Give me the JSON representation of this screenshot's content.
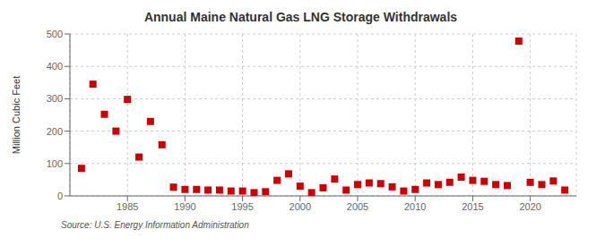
{
  "chart_data": {
    "type": "scatter",
    "title": "Annual Maine Natural Gas LNG Storage Withdrawals",
    "ylabel": "Million Cubic Feet",
    "annotation": "Source: U.S. Energy Information Administration",
    "x": [
      1981,
      1982,
      1983,
      1984,
      1985,
      1986,
      1987,
      1988,
      1989,
      1990,
      1991,
      1992,
      1993,
      1994,
      1995,
      1996,
      1997,
      1998,
      1999,
      2000,
      2001,
      2002,
      2003,
      2004,
      2005,
      2006,
      2007,
      2008,
      2009,
      2010,
      2011,
      2012,
      2013,
      2014,
      2015,
      2016,
      2017,
      2018,
      2019,
      2020,
      2021,
      2022,
      2023
    ],
    "values": [
      85,
      345,
      252,
      200,
      298,
      120,
      230,
      158,
      27,
      20,
      20,
      18,
      18,
      15,
      15,
      10,
      13,
      48,
      68,
      30,
      10,
      25,
      52,
      18,
      35,
      40,
      38,
      28,
      15,
      20,
      40,
      35,
      42,
      58,
      48,
      45,
      35,
      32,
      478,
      42,
      35,
      46,
      18
    ],
    "color": "#cc0000",
    "marker": "square",
    "xlim": [
      1980,
      2024
    ],
    "xticks": [
      1985,
      1990,
      1995,
      2000,
      2005,
      2010,
      2015,
      2020
    ],
    "ylim": [
      0,
      500
    ],
    "yticks": [
      0,
      100,
      200,
      300,
      400,
      500
    ],
    "grid": true
  }
}
